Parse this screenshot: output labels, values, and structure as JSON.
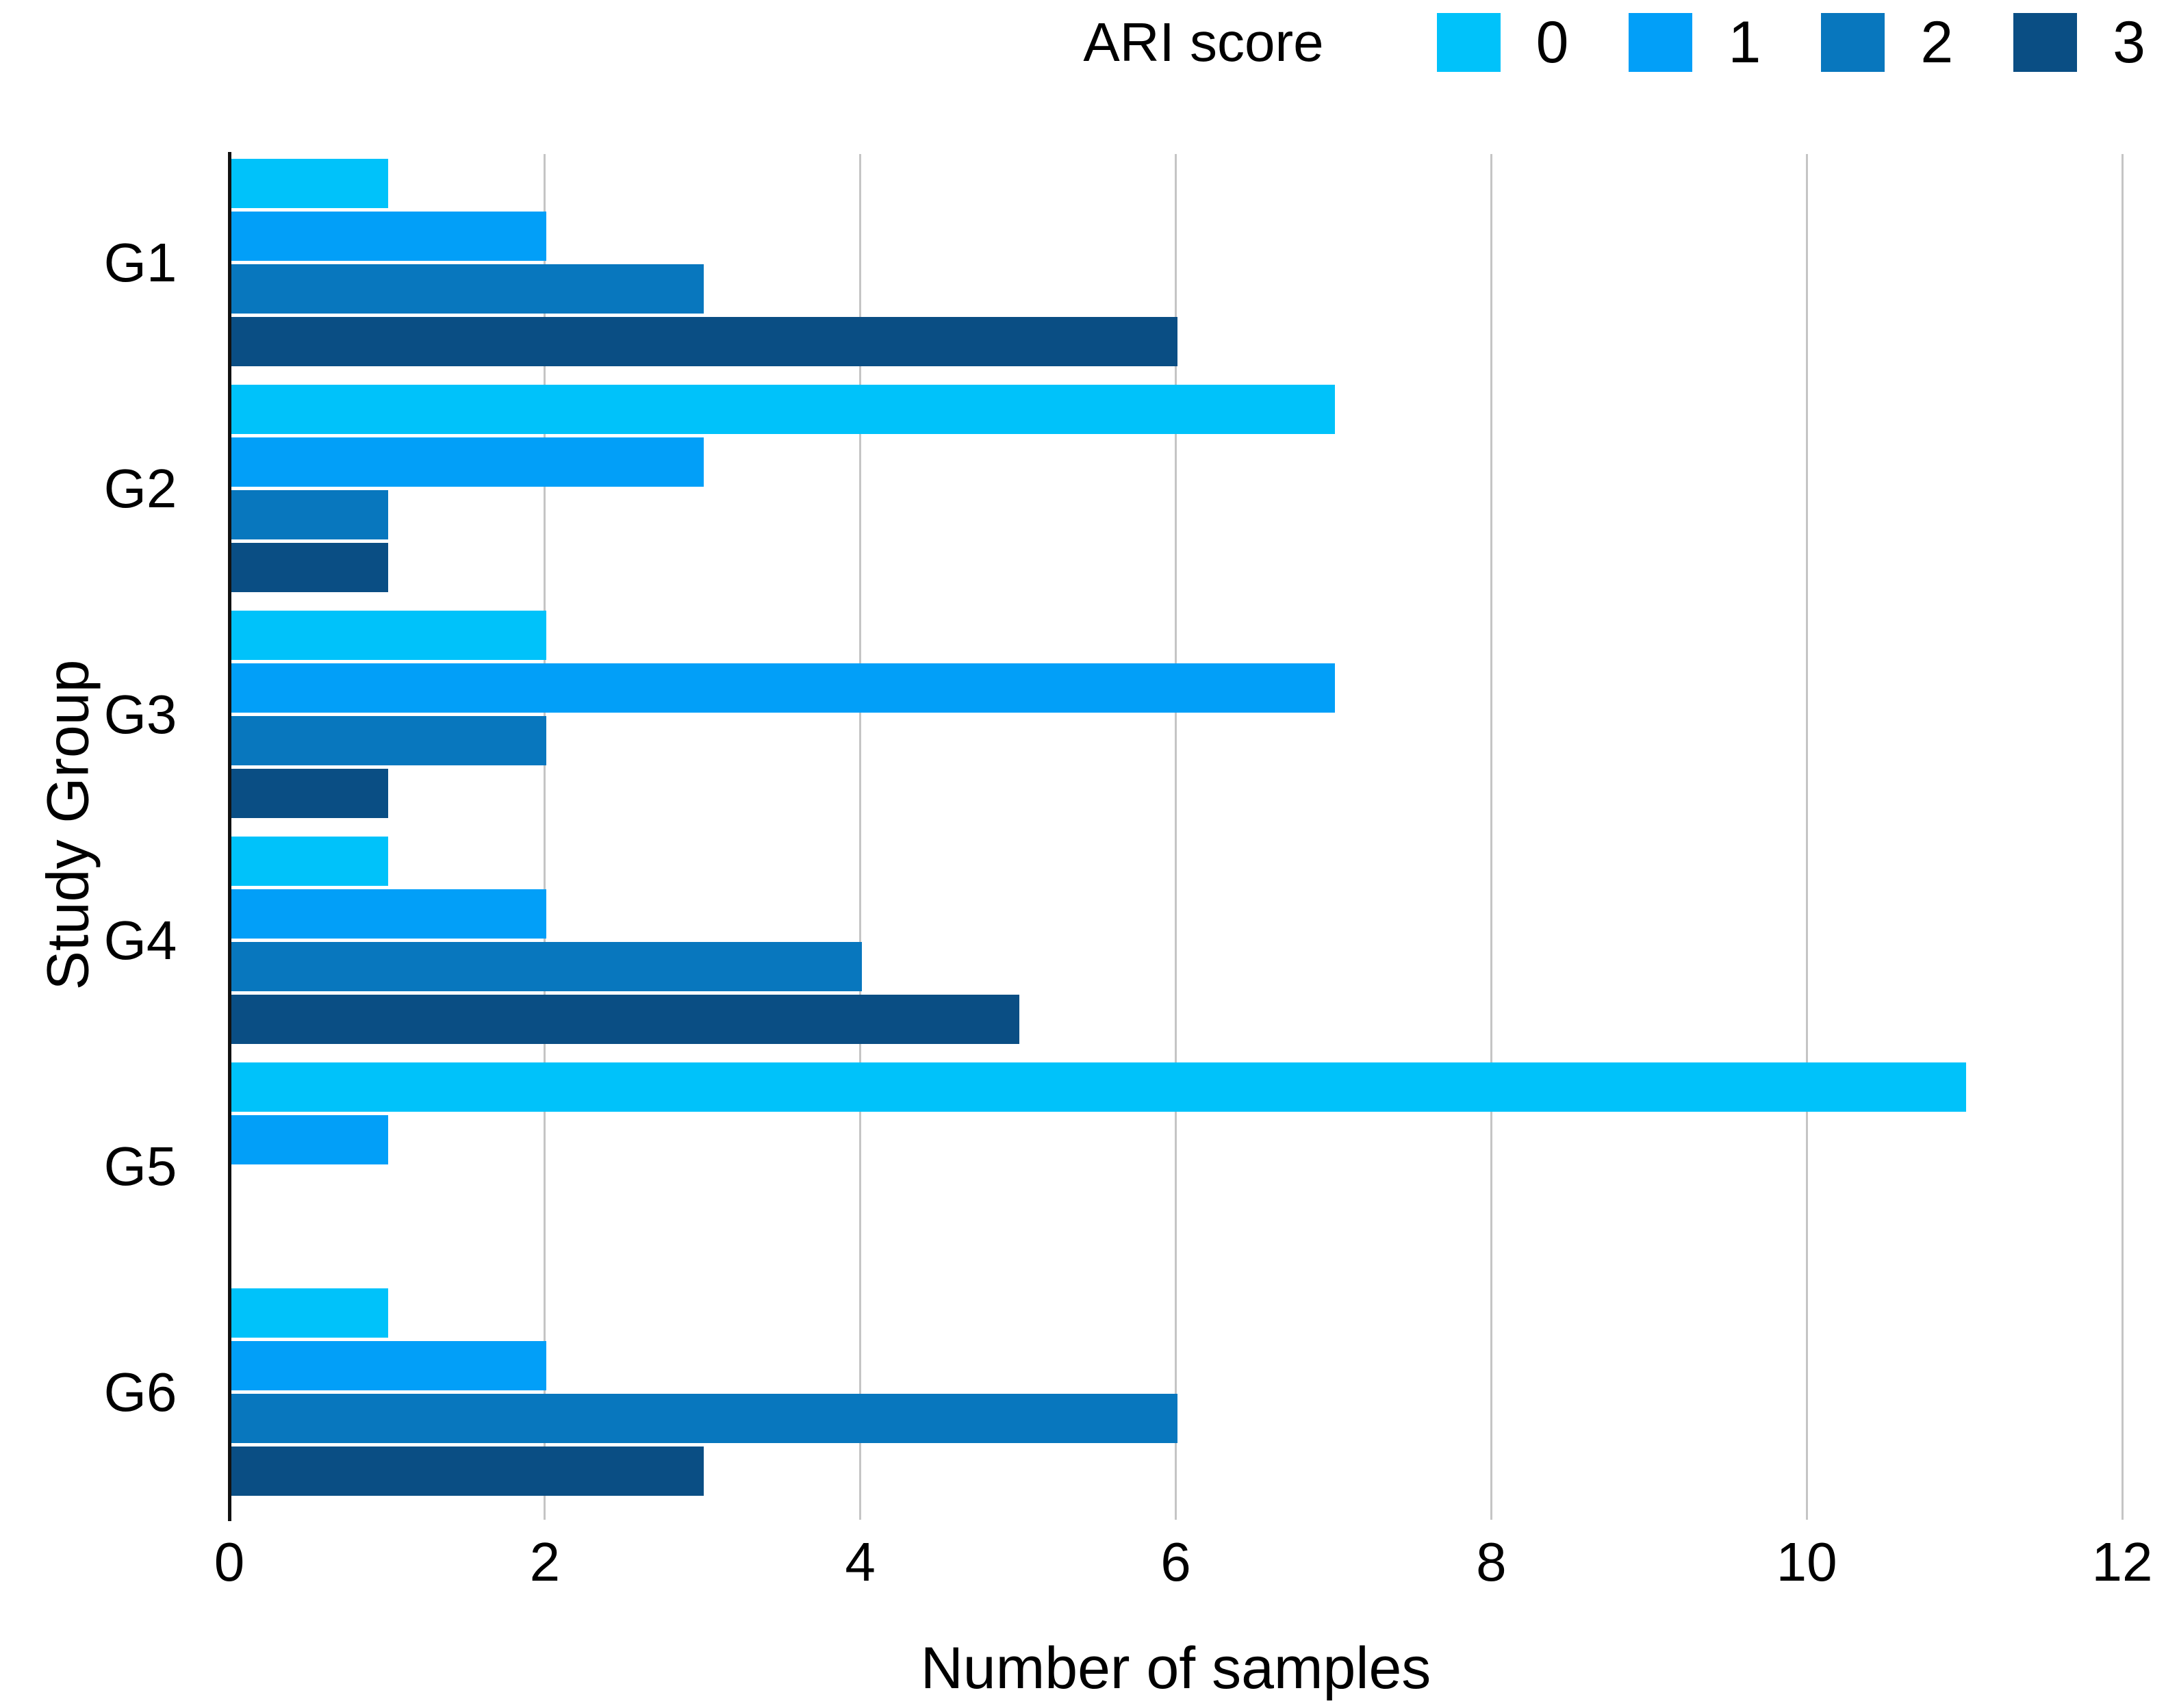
{
  "figure": {
    "background": "#ffffff"
  },
  "legend": {
    "title": "ARI score",
    "entries": [
      {
        "label": "0",
        "color": "#00C2FA"
      },
      {
        "label": "1",
        "color": "#029FF8"
      },
      {
        "label": "2",
        "color": "#0877BE"
      },
      {
        "label": "3",
        "color": "#0A4E84"
      }
    ]
  },
  "chart_data": {
    "type": "bar",
    "orientation": "horizontal",
    "title": "",
    "xlabel": "Number of samples",
    "ylabel": "Study Group",
    "categories": [
      "G1",
      "G2",
      "G3",
      "G4",
      "G5",
      "G6"
    ],
    "series": [
      {
        "name": "0",
        "color": "#00C2FA",
        "values": [
          1,
          7,
          2,
          1,
          11,
          1
        ]
      },
      {
        "name": "1",
        "color": "#029FF8",
        "values": [
          2,
          3,
          7,
          2,
          1,
          2
        ]
      },
      {
        "name": "2",
        "color": "#0877BE",
        "values": [
          3,
          1,
          2,
          4,
          0,
          6
        ]
      },
      {
        "name": "3",
        "color": "#0A4E84",
        "values": [
          6,
          1,
          1,
          5,
          0,
          3
        ]
      }
    ],
    "xlim": [
      0,
      12
    ],
    "xticks": [
      0,
      2,
      4,
      6,
      8,
      10,
      12
    ],
    "grid": "vertical",
    "gridline_color": "#c5c5c5",
    "axis_color": "#111111",
    "legend_position": "top-right"
  }
}
